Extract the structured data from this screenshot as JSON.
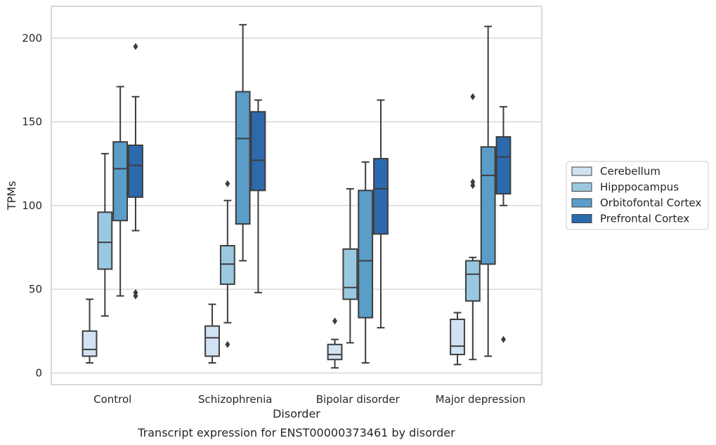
{
  "caption": "Transcript expression for ENST00000373461 by disorder",
  "chart_data": {
    "type": "boxplot",
    "xlabel": "Disorder",
    "ylabel": "TPMs",
    "ylim": [
      -7,
      219
    ],
    "yticks": [
      0,
      50,
      100,
      150,
      200
    ],
    "grid": true,
    "legend_placement": "right",
    "categories": [
      "Control",
      "Schizophrenia",
      "Bipolar disorder",
      "Major depression"
    ],
    "series": [
      {
        "name": "Cerebellum",
        "color": "#d1e2f2",
        "boxes": [
          {
            "whislo": 6,
            "q1": 10,
            "med": 14,
            "q3": 25,
            "whishi": 44,
            "fliers": []
          },
          {
            "whislo": 6,
            "q1": 10,
            "med": 21,
            "q3": 28,
            "whishi": 41,
            "fliers": []
          },
          {
            "whislo": 3,
            "q1": 8,
            "med": 11,
            "q3": 17,
            "whishi": 20,
            "fliers": [
              31
            ]
          },
          {
            "whislo": 5,
            "q1": 11,
            "med": 16,
            "q3": 32,
            "whishi": 36,
            "fliers": []
          }
        ]
      },
      {
        "name": "Hipppocampus",
        "color": "#9ac8e0",
        "boxes": [
          {
            "whislo": 34,
            "q1": 62,
            "med": 78,
            "q3": 96,
            "whishi": 131,
            "fliers": []
          },
          {
            "whislo": 30,
            "q1": 53,
            "med": 65,
            "q3": 76,
            "whishi": 103,
            "fliers": [
              17,
              113
            ]
          },
          {
            "whislo": 18,
            "q1": 44,
            "med": 51,
            "q3": 74,
            "whishi": 110,
            "fliers": []
          },
          {
            "whislo": 8,
            "q1": 43,
            "med": 59,
            "q3": 67,
            "whishi": 69,
            "fliers": [
              112,
              114,
              165
            ]
          }
        ]
      },
      {
        "name": "Orbitofontal Cortex",
        "color": "#5a9dc8",
        "boxes": [
          {
            "whislo": 46,
            "q1": 91,
            "med": 122,
            "q3": 138,
            "whishi": 171,
            "fliers": []
          },
          {
            "whislo": 67,
            "q1": 89,
            "med": 140,
            "q3": 168,
            "whishi": 208,
            "fliers": []
          },
          {
            "whislo": 6,
            "q1": 33,
            "med": 67,
            "q3": 109,
            "whishi": 126,
            "fliers": []
          },
          {
            "whislo": 10,
            "q1": 65,
            "med": 118,
            "q3": 135,
            "whishi": 207,
            "fliers": []
          }
        ]
      },
      {
        "name": "Prefrontal Cortex",
        "color": "#2c6aad",
        "boxes": [
          {
            "whislo": 85,
            "q1": 105,
            "med": 124,
            "q3": 136,
            "whishi": 165,
            "fliers": [
              46,
              48,
              195
            ]
          },
          {
            "whislo": 48,
            "q1": 109,
            "med": 127,
            "q3": 156,
            "whishi": 163,
            "fliers": []
          },
          {
            "whislo": 27,
            "q1": 83,
            "med": 110,
            "q3": 128,
            "whishi": 163,
            "fliers": []
          },
          {
            "whislo": 100,
            "q1": 107,
            "med": 129,
            "q3": 141,
            "whishi": 159,
            "fliers": [
              20
            ]
          }
        ]
      }
    ]
  }
}
